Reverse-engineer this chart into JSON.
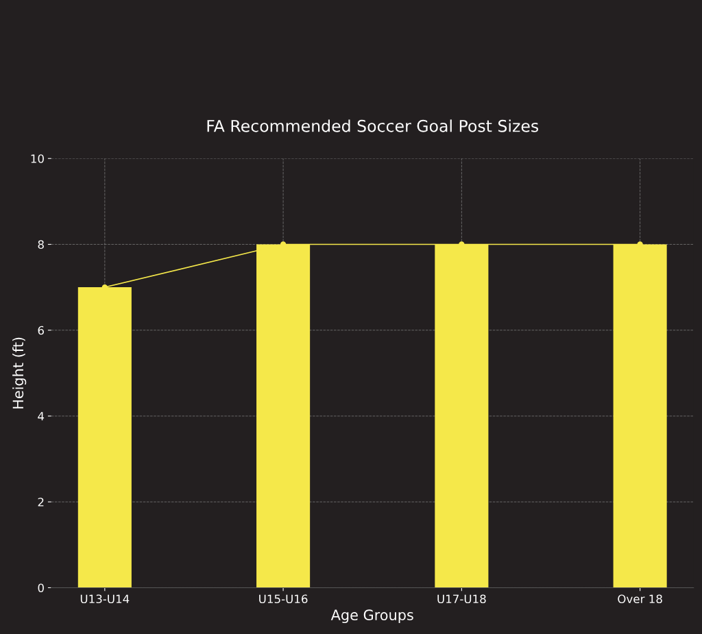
{
  "chart_data": {
    "type": "bar",
    "title": "FA Recommended Soccer Goal Post Sizes",
    "xlabel": "Age Groups",
    "ylabel": "Height (ft)",
    "categories": [
      "U13-U14",
      "U15-U16",
      "U17-U18",
      "Over 18"
    ],
    "series": [
      {
        "color": "#f5e84a",
        "values": [
          7,
          8,
          8,
          8
        ]
      },
      {
        "type": "line",
        "color": "#f5e84a",
        "values": [
          7,
          8,
          8,
          8
        ]
      }
    ],
    "marker": "circle",
    "line_style": "solid",
    "ylim": [
      0,
      10
    ],
    "yticks": [
      0,
      2,
      4,
      6,
      8,
      10
    ],
    "grid": true
  }
}
